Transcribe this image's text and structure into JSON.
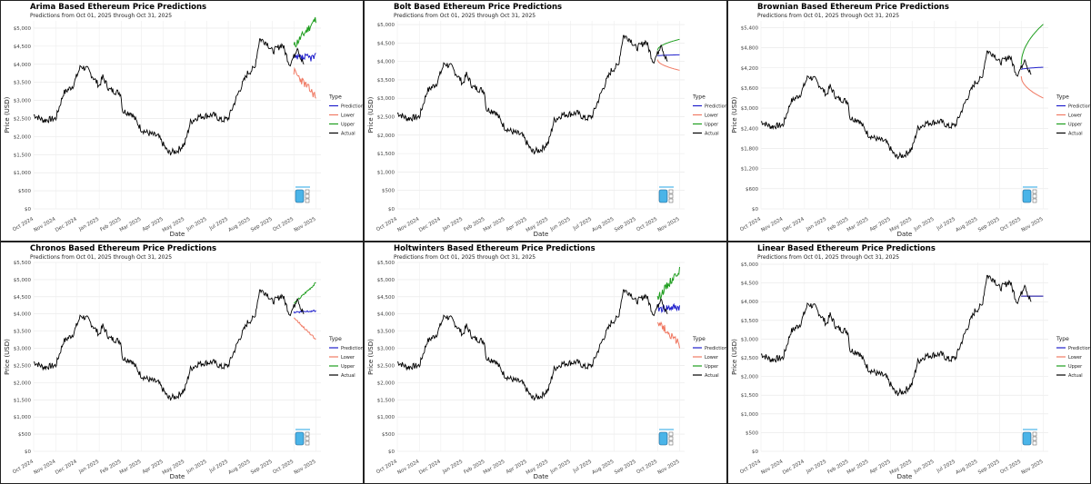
{
  "subtitle": "Predictions from Oct 01, 2025 through Oct 31, 2025",
  "xlabel": "Date",
  "ylabel": "Price (USD)",
  "legend_title": "Type",
  "legend_items": [
    "Prediction",
    "Lower",
    "Upper",
    "Actual"
  ],
  "legend_colors": {
    "Prediction": "#1f1fcc",
    "Lower": "#f07a64",
    "Upper": "#1f9e1f",
    "Actual": "#000000"
  },
  "x_ticks": [
    "Oct 2024",
    "Nov 2024",
    "Dec 2024",
    "Jan 2025",
    "Feb 2025",
    "Mar 2025",
    "Apr 2025",
    "May 2025",
    "Jun 2025",
    "Jul 2025",
    "Aug 2025",
    "Sep 2025",
    "Oct 2025",
    "Nov 2025"
  ],
  "chart_data": [
    {
      "type": "line",
      "title": "Arima Based Ethereum Price Predictions",
      "yticks": [
        "$0",
        "$500",
        "$1,000",
        "$1,500",
        "$2,000",
        "$2,500",
        "$3,000",
        "$3,500",
        "$4,000",
        "$4,500",
        "$5,000"
      ],
      "ylim": [
        0,
        5200
      ],
      "actual_end_date": "2025-10-01",
      "forecast": {
        "prediction": [
          4150,
          4200
        ],
        "lower": [
          3800,
          3100
        ],
        "upper": [
          4500,
          5250
        ]
      }
    },
    {
      "type": "line",
      "title": "Bolt Based Ethereum Price Predictions",
      "yticks": [
        "$0",
        "$500",
        "$1,000",
        "$1,500",
        "$2,000",
        "$2,500",
        "$3,000",
        "$3,500",
        "$4,000",
        "$4,500",
        "$5,000"
      ],
      "ylim": [
        0,
        5100
      ],
      "actual_end_date": "2025-10-01",
      "forecast": {
        "prediction": [
          4150,
          4180
        ],
        "lower": [
          4050,
          3760
        ],
        "upper": [
          4300,
          4600
        ]
      }
    },
    {
      "type": "line",
      "title": "Brownian Based Ethereum Price Predictions",
      "yticks": [
        "$0",
        "$600",
        "$1,200",
        "$1,800",
        "$2,400",
        "$3,000",
        "$3,600",
        "$4,200",
        "$4,800",
        "$5,400"
      ],
      "ylim": [
        0,
        5600
      ],
      "actual_end_date": "2025-10-01",
      "forecast": {
        "prediction": [
          4150,
          4220
        ],
        "lower": [
          3950,
          3300
        ],
        "upper": [
          4300,
          5500
        ]
      }
    },
    {
      "type": "line",
      "title": "Chronos Based Ethereum Price Predictions",
      "yticks": [
        "$0",
        "$500",
        "$1,000",
        "$1,500",
        "$2,000",
        "$2,500",
        "$3,000",
        "$3,500",
        "$4,000",
        "$4,500",
        "$5,000",
        "$5,500"
      ],
      "ylim": [
        0,
        5500
      ],
      "actual_end_date": "2025-10-01",
      "forecast": {
        "prediction": [
          4050,
          4100
        ],
        "lower": [
          3900,
          3250
        ],
        "upper": [
          4300,
          4900
        ]
      }
    },
    {
      "type": "line",
      "title": "Holtwinters Based Ethereum Price Predictions",
      "yticks": [
        "$0",
        "$500",
        "$1,000",
        "$1,500",
        "$2,000",
        "$2,500",
        "$3,000",
        "$3,500",
        "$4,000",
        "$4,500",
        "$5,000",
        "$5,500"
      ],
      "ylim": [
        0,
        5500
      ],
      "actual_end_date": "2025-10-01",
      "forecast": {
        "prediction": [
          4150,
          4200
        ],
        "lower": [
          3800,
          3100
        ],
        "upper": [
          4450,
          5300
        ]
      }
    },
    {
      "type": "line",
      "title": "Linear Based Ethereum Price Predictions",
      "yticks": [
        "$0",
        "$500",
        "$1,000",
        "$1,500",
        "$2,000",
        "$2,500",
        "$3,000",
        "$3,500",
        "$4,000",
        "$4,500",
        "$5,000"
      ],
      "ylim": [
        0,
        5050
      ],
      "actual_end_date": "2025-10-01",
      "forecast": {
        "prediction": [
          4150,
          4150
        ],
        "lower": [
          4150,
          4150
        ],
        "upper": [
          4150,
          4150
        ]
      }
    }
  ],
  "actual_series": {
    "name": "Actual",
    "dates": [
      "2024-10-01",
      "2024-10-15",
      "2024-11-01",
      "2024-11-12",
      "2024-11-25",
      "2024-12-06",
      "2024-12-16",
      "2025-01-01",
      "2025-01-06",
      "2025-01-15",
      "2025-01-31",
      "2025-02-03",
      "2025-02-15",
      "2025-03-01",
      "2025-03-10",
      "2025-03-25",
      "2025-04-08",
      "2025-04-20",
      "2025-05-01",
      "2025-05-09",
      "2025-05-20",
      "2025-06-10",
      "2025-06-22",
      "2025-07-01",
      "2025-07-15",
      "2025-07-28",
      "2025-08-07",
      "2025-08-14",
      "2025-08-24",
      "2025-09-01",
      "2025-09-15",
      "2025-09-25",
      "2025-10-01",
      "2025-10-06",
      "2025-10-11",
      "2025-10-15"
    ],
    "values": [
      2600,
      2450,
      2500,
      3200,
      3400,
      3950,
      3850,
      3400,
      3650,
      3300,
      3200,
      2700,
      2650,
      2200,
      2100,
      2000,
      1550,
      1600,
      1800,
      2400,
      2550,
      2600,
      2450,
      2500,
      3200,
      3750,
      3900,
      4700,
      4600,
      4350,
      4550,
      4000,
      4200,
      4500,
      4150,
      4000
    ]
  }
}
